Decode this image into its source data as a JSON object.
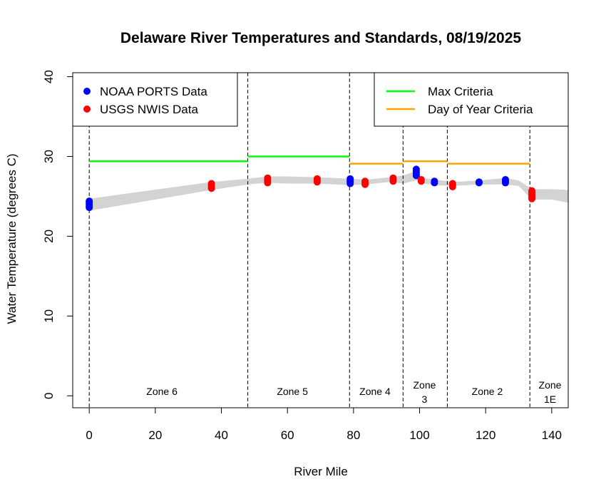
{
  "chart_data": {
    "type": "scatter",
    "title": "Delaware River Temperatures and Standards, 08/19/2025",
    "xlabel": "River Mile",
    "ylabel": "Water Temperature (degrees C)",
    "xlim": [
      -5,
      145
    ],
    "ylim": [
      -1.5,
      40.5
    ],
    "x_ticks": [
      0,
      20,
      40,
      60,
      80,
      100,
      120,
      140
    ],
    "y_ticks": [
      0,
      10,
      20,
      30,
      40
    ],
    "legend_left": {
      "placement": "top-left",
      "entries": [
        {
          "label": "NOAA PORTS Data",
          "color": "#0000FF",
          "marker": "point"
        },
        {
          "label": "USGS NWIS Data",
          "color": "#FF0000",
          "marker": "point"
        }
      ]
    },
    "legend_right": {
      "placement": "top-right",
      "entries": [
        {
          "label": "Max Criteria",
          "color": "#00FF00",
          "marker": "line"
        },
        {
          "label": "Day of Year Criteria",
          "color": "#FFA500",
          "marker": "line"
        }
      ]
    },
    "zone_boundaries": [
      0,
      48,
      78.8,
      95,
      108.4,
      133.4
    ],
    "zones": [
      {
        "lines": [
          "Zone 6"
        ],
        "x": 22
      },
      {
        "lines": [
          "Zone 5"
        ],
        "x": 61.5
      },
      {
        "lines": [
          "Zone 4"
        ],
        "x": 86.5
      },
      {
        "lines": [
          "Zone",
          "3"
        ],
        "x": 101.5
      },
      {
        "lines": [
          "Zone 2"
        ],
        "x": 120.5
      },
      {
        "lines": [
          "Zone",
          "1E"
        ],
        "x": 139.5
      }
    ],
    "band": {
      "color": "#D3D3D3",
      "upper": [
        [
          0,
          24.7
        ],
        [
          37,
          26.8
        ],
        [
          48,
          27.2
        ],
        [
          54,
          27.5
        ],
        [
          60,
          27.5
        ],
        [
          69,
          27.4
        ],
        [
          78.8,
          27.2
        ],
        [
          84,
          27.1
        ],
        [
          91,
          27.4
        ],
        [
          95,
          27.6
        ],
        [
          99,
          28.2
        ],
        [
          101,
          27.3
        ],
        [
          105,
          27.1
        ],
        [
          110,
          26.8
        ],
        [
          118,
          27.0
        ],
        [
          126,
          27.3
        ],
        [
          130,
          27.0
        ],
        [
          134,
          25.9
        ],
        [
          140,
          25.9
        ],
        [
          145,
          25.8
        ]
      ],
      "lower": [
        [
          0,
          23.2
        ],
        [
          37,
          25.8
        ],
        [
          48,
          26.5
        ],
        [
          54,
          26.7
        ],
        [
          60,
          26.6
        ],
        [
          69,
          26.6
        ],
        [
          78.8,
          26.4
        ],
        [
          84,
          26.5
        ],
        [
          91,
          26.8
        ],
        [
          95,
          26.6
        ],
        [
          99,
          27.0
        ],
        [
          101,
          26.6
        ],
        [
          105,
          26.4
        ],
        [
          110,
          26.3
        ],
        [
          118,
          26.5
        ],
        [
          126,
          26.5
        ],
        [
          130,
          26.3
        ],
        [
          134,
          24.6
        ],
        [
          140,
          24.6
        ],
        [
          145,
          24.2
        ]
      ]
    },
    "series": [
      {
        "name": "NOAA PORTS Data",
        "color": "#0000FF",
        "points": [
          [
            0,
            23.6
          ],
          [
            0,
            23.8
          ],
          [
            0,
            24.0
          ],
          [
            0,
            24.2
          ],
          [
            0,
            24.4
          ],
          [
            79,
            26.6
          ],
          [
            79,
            26.8
          ],
          [
            79,
            27.0
          ],
          [
            79,
            27.2
          ],
          [
            99,
            27.6
          ],
          [
            99,
            27.8
          ],
          [
            99,
            28.0
          ],
          [
            99,
            28.2
          ],
          [
            99,
            28.4
          ],
          [
            104.5,
            26.7
          ],
          [
            104.5,
            26.9
          ],
          [
            118,
            26.7
          ],
          [
            118,
            26.8
          ],
          [
            126,
            26.7
          ],
          [
            126,
            26.9
          ],
          [
            126,
            27.1
          ]
        ]
      },
      {
        "name": "USGS NWIS Data",
        "color": "#FF0000",
        "points": [
          [
            37,
            26.0
          ],
          [
            37,
            26.2
          ],
          [
            37,
            26.4
          ],
          [
            37,
            26.6
          ],
          [
            54,
            26.7
          ],
          [
            54,
            26.9
          ],
          [
            54,
            27.1
          ],
          [
            54,
            27.3
          ],
          [
            69,
            26.8
          ],
          [
            69,
            27.0
          ],
          [
            69,
            27.2
          ],
          [
            83.5,
            26.5
          ],
          [
            83.5,
            26.7
          ],
          [
            83.5,
            26.9
          ],
          [
            92,
            26.9
          ],
          [
            92,
            27.1
          ],
          [
            92,
            27.3
          ],
          [
            100.5,
            26.9
          ],
          [
            100.5,
            27.1
          ],
          [
            110,
            26.2
          ],
          [
            110,
            26.4
          ],
          [
            110,
            26.6
          ],
          [
            134,
            24.7
          ],
          [
            134,
            24.9
          ],
          [
            134,
            25.1
          ],
          [
            134,
            25.3
          ],
          [
            134,
            25.5
          ],
          [
            134,
            25.7
          ]
        ]
      }
    ],
    "criteria": [
      {
        "name": "Max Criteria",
        "color": "#00FF00",
        "segments": [
          [
            0,
            48,
            29.4
          ],
          [
            48,
            78.8,
            30.0
          ]
        ]
      },
      {
        "name": "Day of Year Criteria",
        "color": "#FFA500",
        "segments": [
          [
            78.8,
            95,
            29.1
          ],
          [
            95,
            108.4,
            29.4
          ],
          [
            108.4,
            133.4,
            29.1
          ]
        ]
      }
    ]
  }
}
